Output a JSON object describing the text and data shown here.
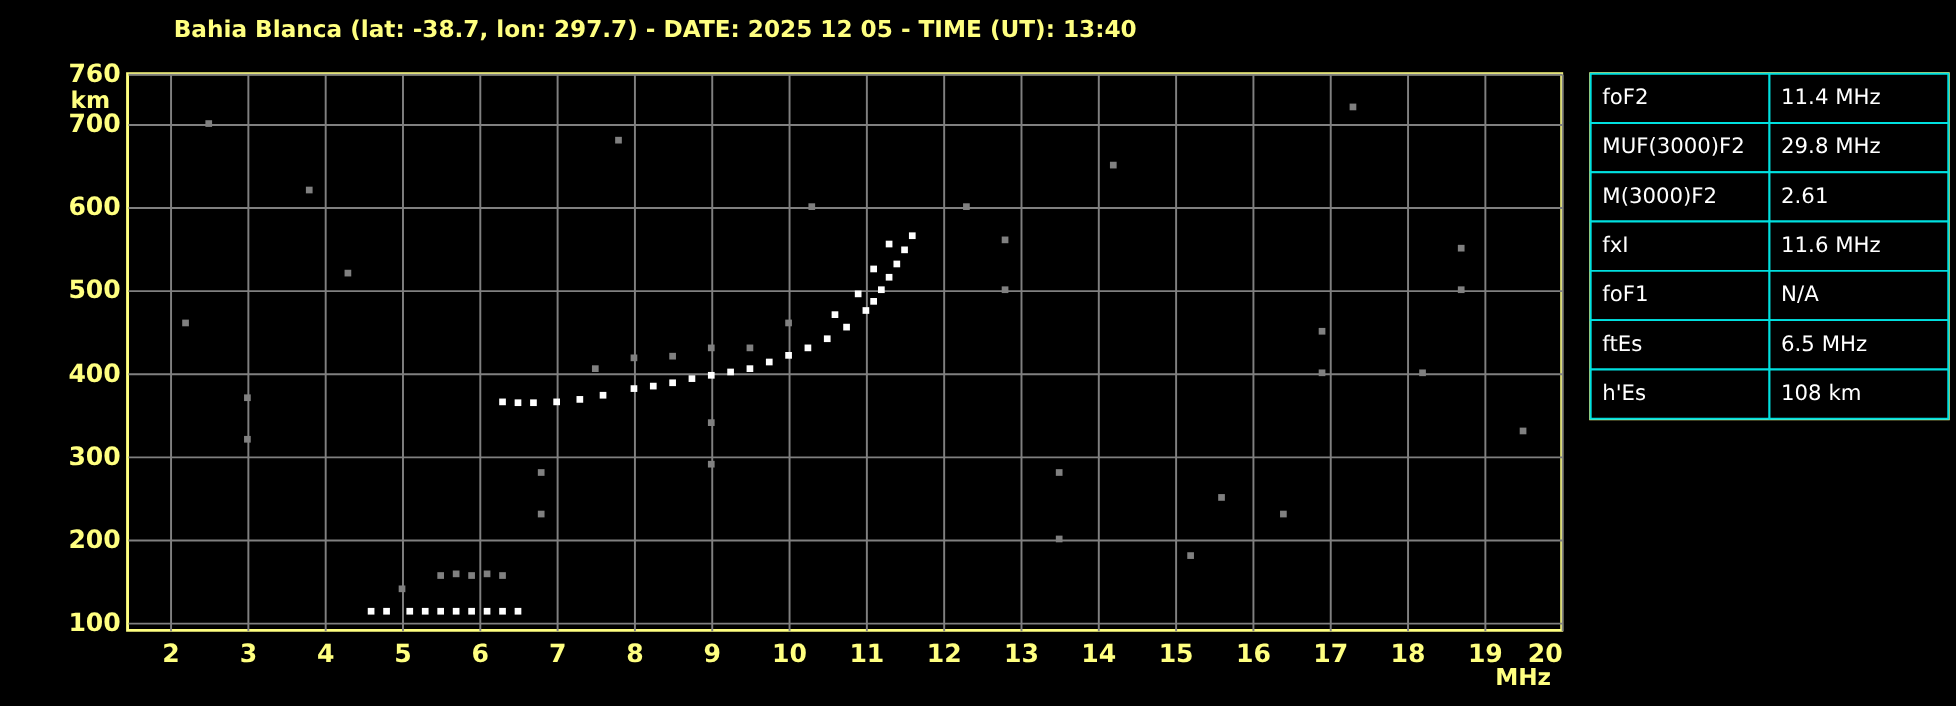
{
  "chart_data": [
    {
      "type": "scatter",
      "title": "Bahia Blanca (lat: -38.7, lon: 297.7) - DATE: 2025 12 05 - TIME (UT): 13:40",
      "xlabel": "MHz",
      "ylabel": "km",
      "xlim": [
        1.45,
        20
      ],
      "ylim": [
        90,
        760
      ],
      "xticks": [
        2,
        3,
        4,
        5,
        6,
        7,
        8,
        9,
        10,
        11,
        12,
        13,
        14,
        15,
        16,
        17,
        18,
        19,
        20
      ],
      "yticks": [
        100,
        200,
        300,
        400,
        500,
        600,
        700,
        760
      ],
      "grid": true,
      "marker": "square",
      "series": [
        {
          "color": "#ffffff",
          "x": [
            4.6,
            4.8,
            5.1,
            5.3,
            5.5,
            5.7,
            5.9,
            6.1,
            6.3,
            6.5,
            6.3,
            6.5,
            6.7,
            7.0,
            7.3,
            7.6,
            8.0,
            8.25,
            8.5,
            8.75,
            9.0,
            9.25,
            9.5,
            9.75,
            10.0,
            10.25,
            10.5,
            10.75,
            11.0,
            11.1,
            11.2,
            11.3,
            11.4,
            11.5,
            10.6,
            10.9,
            11.1,
            11.3,
            11.6
          ],
          "values": [
            113,
            113,
            113,
            113,
            113,
            113,
            113,
            113,
            113,
            113,
            365,
            364,
            364,
            365,
            368,
            373,
            381,
            384,
            388,
            393,
            397,
            401,
            405,
            413,
            421,
            430,
            441,
            455,
            475,
            486,
            500,
            515,
            531,
            548,
            470,
            495,
            525,
            555,
            565
          ]
        },
        {
          "color": "#808080",
          "x": [
            5.5,
            5.7,
            5.9,
            6.1,
            6.3,
            5.0,
            7.5,
            8.0,
            8.5,
            9.0,
            9.0,
            9.0,
            9.5,
            10.0,
            3.0,
            3.0,
            6.8,
            6.8,
            12.8,
            12.8,
            13.5,
            13.5,
            16.9,
            16.9,
            18.7,
            18.7,
            2.5,
            3.8,
            4.3,
            12.3,
            14.2,
            15.6,
            17.3,
            19.5,
            2.2,
            7.8,
            10.3,
            15.2,
            18.2,
            16.4
          ],
          "values": [
            156,
            158,
            156,
            158,
            156,
            140,
            405,
            418,
            420,
            430,
            340,
            290,
            430,
            460,
            370,
            320,
            280,
            230,
            560,
            500,
            280,
            200,
            450,
            400,
            550,
            500,
            700,
            620,
            520,
            600,
            650,
            250,
            720,
            330,
            460,
            680,
            600,
            180,
            400,
            230
          ]
        }
      ]
    },
    {
      "type": "other",
      "categories": [
        "foF2",
        "MUF(3000)F2",
        "M(3000)F2",
        "fxI",
        "foF1",
        "ftEs",
        "h'Es"
      ],
      "value_labels": [
        "11.4 MHz",
        "29.8 MHz",
        "2.61",
        "11.6 MHz",
        "N/A",
        "6.5 MHz",
        "108 km"
      ]
    }
  ]
}
